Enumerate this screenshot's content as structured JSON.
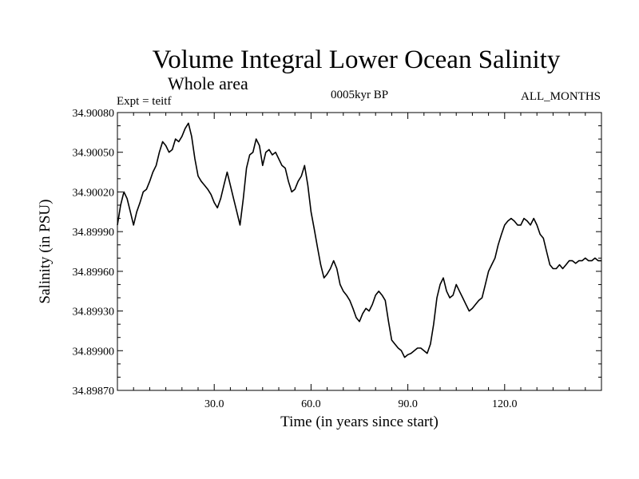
{
  "chart_data": {
    "type": "line",
    "title": "Volume Integral Lower Ocean Salinity",
    "subtitle": "Whole area",
    "expt_label": "Expt = teitf",
    "period_label": "0005kyr BP",
    "months_label": "ALL_MONTHS",
    "xlabel": "Time (in years since start)",
    "ylabel": "Salinity (in PSU)",
    "xlim": [
      0,
      150
    ],
    "ylim": [
      34.8987,
      34.9008
    ],
    "xticks": [
      30,
      60,
      90,
      120
    ],
    "xtick_labels": [
      "30.0",
      "60.0",
      "90.0",
      "120.0"
    ],
    "yticks": [
      34.8987,
      34.899,
      34.8993,
      34.8996,
      34.8999,
      34.9002,
      34.9005,
      34.9008
    ],
    "ytick_labels": [
      "34.89870",
      "34.89900",
      "34.89930",
      "34.89960",
      "34.89990",
      "34.90020",
      "34.90050",
      "34.90080"
    ],
    "series": [
      {
        "name": "salinity",
        "x": [
          0,
          1,
          2,
          3,
          4,
          5,
          6,
          7,
          8,
          9,
          10,
          11,
          12,
          13,
          14,
          15,
          16,
          17,
          18,
          19,
          20,
          21,
          22,
          23,
          24,
          25,
          26,
          27,
          28,
          29,
          30,
          31,
          32,
          33,
          34,
          35,
          36,
          37,
          38,
          39,
          40,
          41,
          42,
          43,
          44,
          45,
          46,
          47,
          48,
          49,
          50,
          51,
          52,
          53,
          54,
          55,
          56,
          57,
          58,
          59,
          60,
          61,
          62,
          63,
          64,
          65,
          66,
          67,
          68,
          69,
          70,
          71,
          72,
          73,
          74,
          75,
          76,
          77,
          78,
          79,
          80,
          81,
          82,
          83,
          84,
          85,
          86,
          87,
          88,
          89,
          90,
          91,
          92,
          93,
          94,
          95,
          96,
          97,
          98,
          99,
          100,
          101,
          102,
          103,
          104,
          105,
          106,
          107,
          108,
          109,
          110,
          111,
          112,
          113,
          114,
          115,
          116,
          117,
          118,
          119,
          120,
          121,
          122,
          123,
          124,
          125,
          126,
          127,
          128,
          129,
          130,
          131,
          132,
          133,
          134,
          135,
          136,
          137,
          138,
          139,
          140,
          141,
          142,
          143,
          144,
          145,
          146,
          147,
          148,
          149,
          150
        ],
        "values": [
          34.89995,
          34.9001,
          34.9002,
          34.90015,
          34.90005,
          34.89995,
          34.90005,
          34.90012,
          34.9002,
          34.90022,
          34.90028,
          34.90035,
          34.9004,
          34.9005,
          34.90058,
          34.90055,
          34.9005,
          34.90052,
          34.9006,
          34.90058,
          34.90062,
          34.90068,
          34.90072,
          34.90062,
          34.90045,
          34.90032,
          34.90028,
          34.90025,
          34.90022,
          34.90018,
          34.90012,
          34.90008,
          34.90015,
          34.90025,
          34.90035,
          34.90025,
          34.90015,
          34.90005,
          34.89995,
          34.90015,
          34.90038,
          34.90048,
          34.9005,
          34.9006,
          34.90055,
          34.9004,
          34.9005,
          34.90052,
          34.90048,
          34.9005,
          34.90045,
          34.9004,
          34.90038,
          34.90028,
          34.9002,
          34.90022,
          34.90028,
          34.90032,
          34.9004,
          34.90025,
          34.90005,
          34.89992,
          34.89978,
          34.89965,
          34.89955,
          34.89958,
          34.89962,
          34.89968,
          34.89962,
          34.8995,
          34.89945,
          34.89942,
          34.89938,
          34.89932,
          34.89925,
          34.89922,
          34.89928,
          34.89932,
          34.8993,
          34.89935,
          34.89942,
          34.89945,
          34.89942,
          34.89938,
          34.89922,
          34.89908,
          34.89905,
          34.89902,
          34.899,
          34.89895,
          34.89897,
          34.89898,
          34.899,
          34.89902,
          34.89902,
          34.899,
          34.89898,
          34.89905,
          34.8992,
          34.8994,
          34.8995,
          34.89955,
          34.89945,
          34.8994,
          34.89942,
          34.8995,
          34.89945,
          34.8994,
          34.89935,
          34.8993,
          34.89932,
          34.89935,
          34.89938,
          34.8994,
          34.8995,
          34.8996,
          34.89965,
          34.8997,
          34.8998,
          34.89988,
          34.89995,
          34.89998,
          34.9,
          34.89998,
          34.89995,
          34.89995,
          34.9,
          34.89998,
          34.89995,
          34.9,
          34.89995,
          34.89988,
          34.89985,
          34.89975,
          34.89965,
          34.89962,
          34.89962,
          34.89965,
          34.89962,
          34.89965,
          34.89968,
          34.89968,
          34.89966,
          34.89968,
          34.89968,
          34.8997,
          34.89968,
          34.89968,
          34.8997,
          34.89968,
          34.89968
        ]
      }
    ]
  }
}
